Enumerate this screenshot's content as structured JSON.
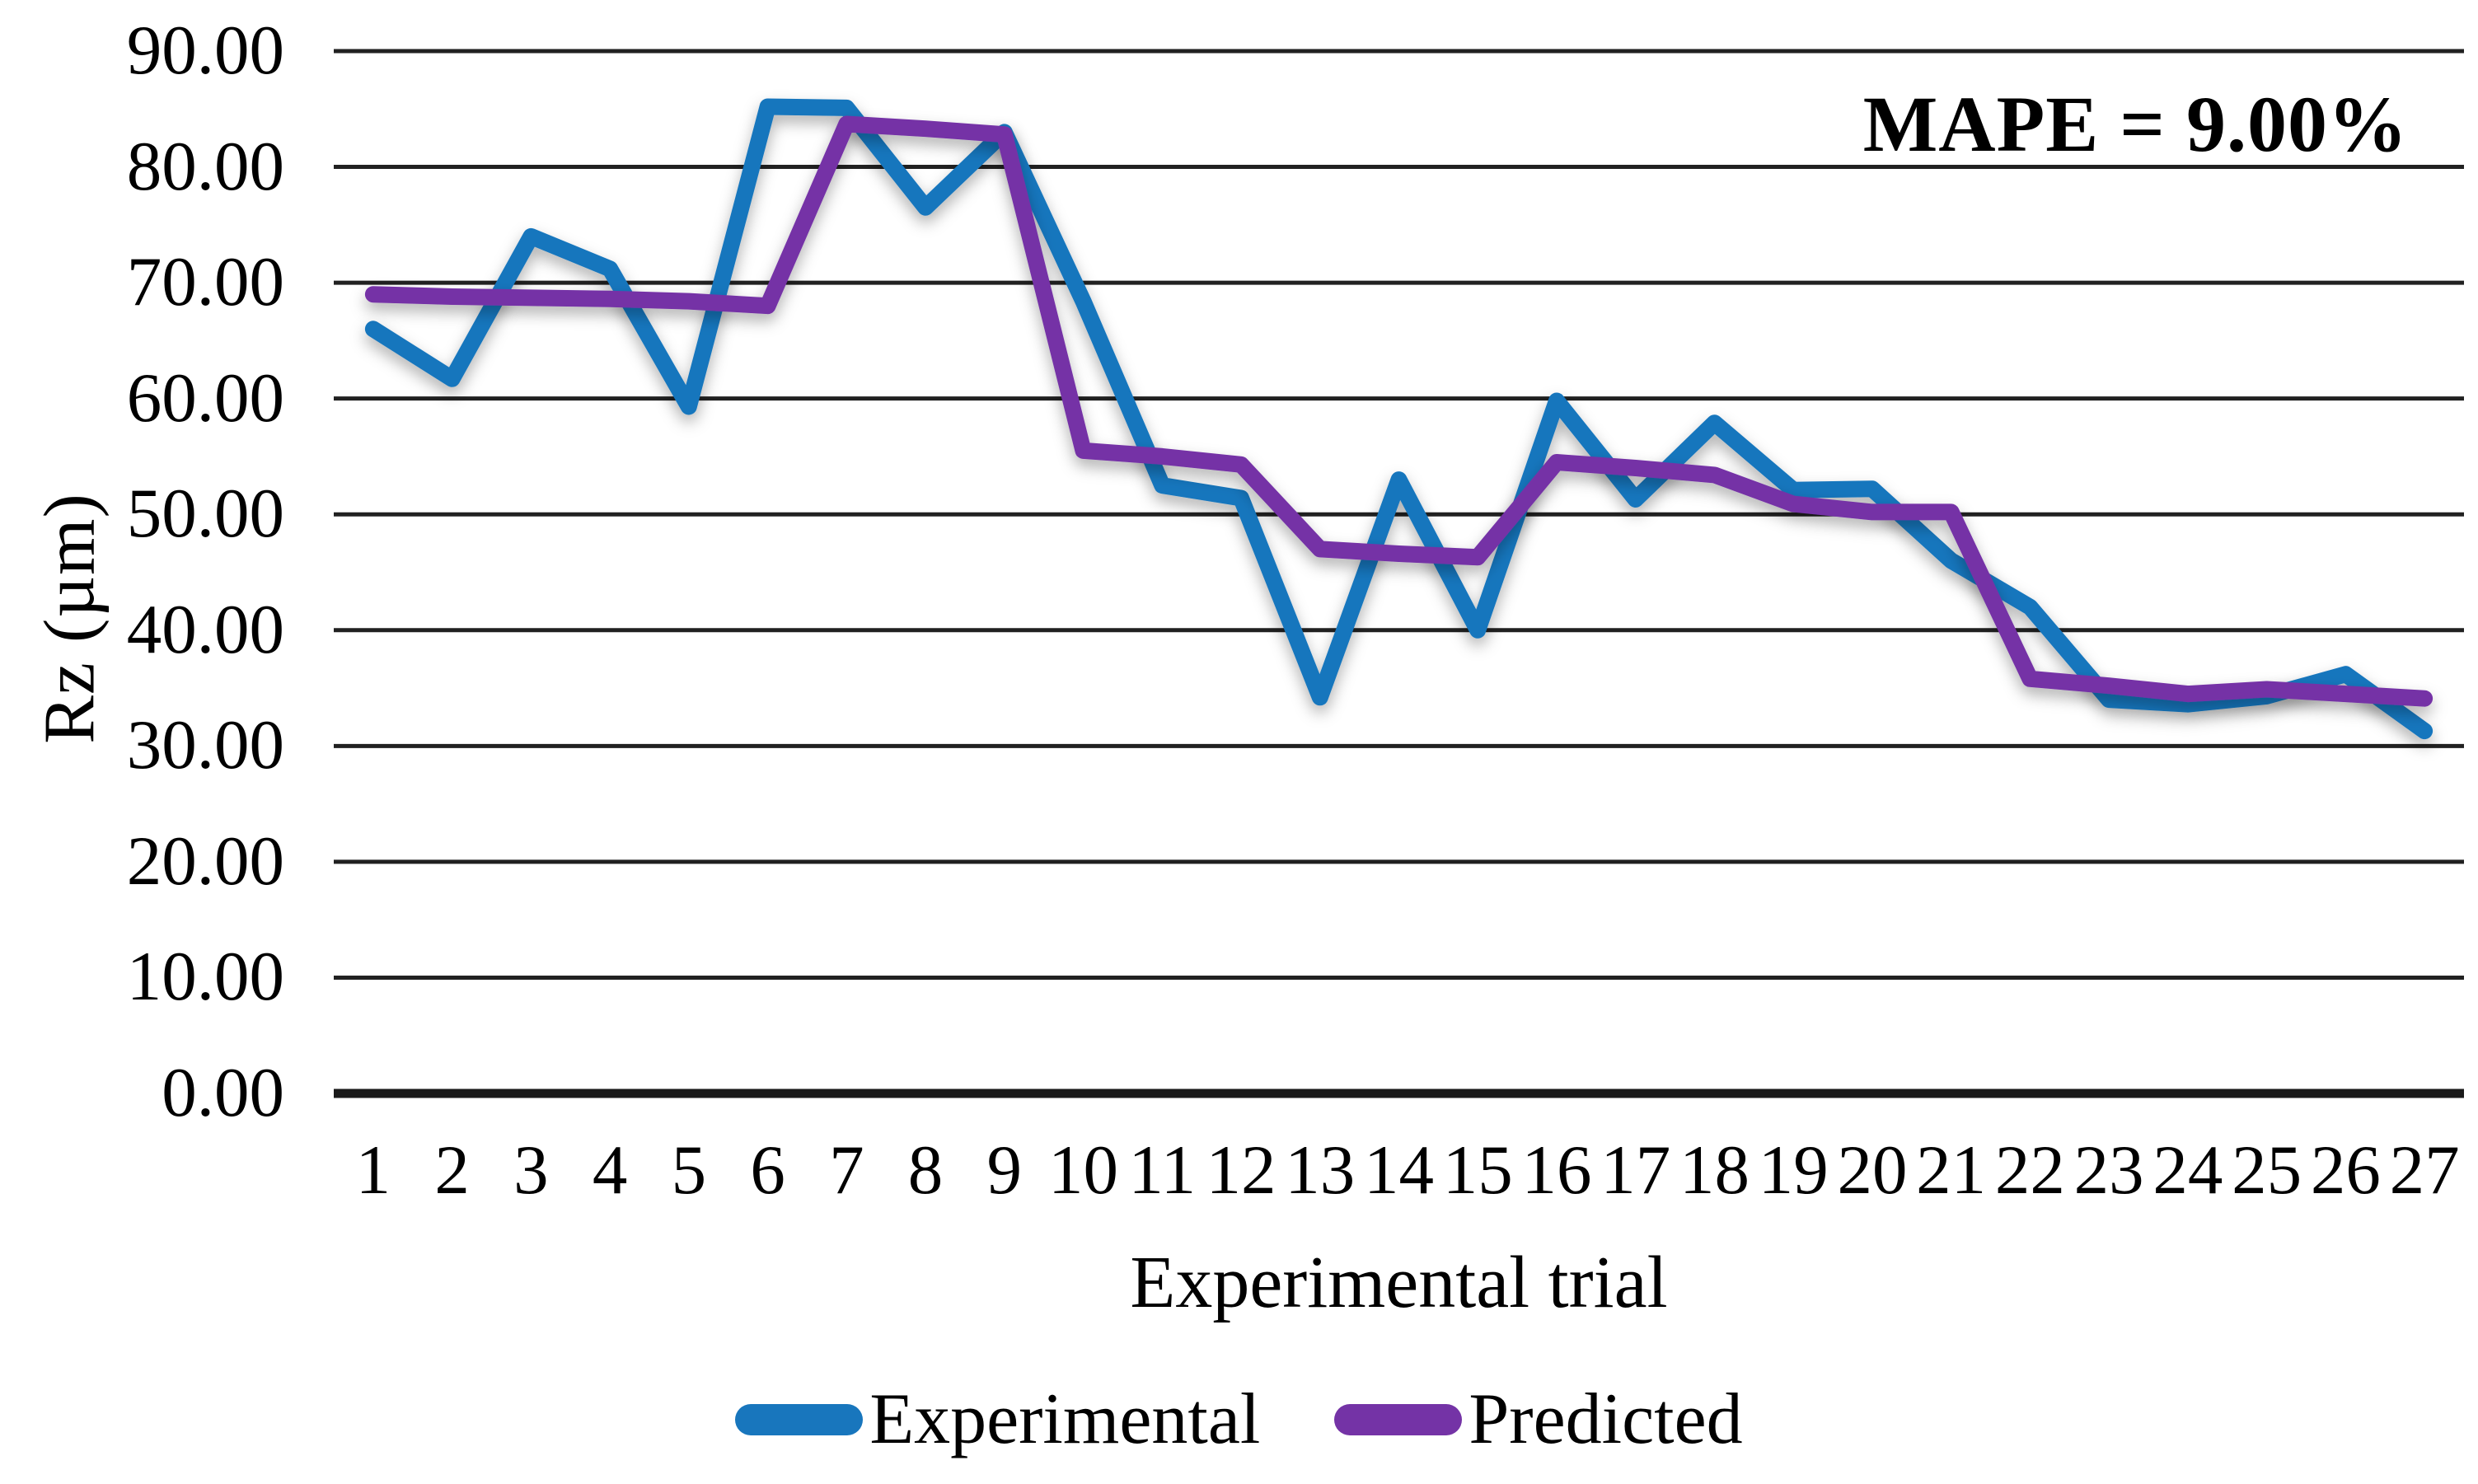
{
  "chart_data": {
    "type": "line",
    "title": "",
    "xlabel": "Experimental trial",
    "ylabel": "Rz (µm)",
    "annotation": "MAPE = 9.00%",
    "categories": [
      "1",
      "2",
      "3",
      "4",
      "5",
      "6",
      "7",
      "8",
      "9",
      "10",
      "11",
      "12",
      "13",
      "14",
      "15",
      "16",
      "17",
      "18",
      "19",
      "20",
      "21",
      "22",
      "23",
      "24",
      "25",
      "26",
      "27"
    ],
    "y_tick_labels": [
      "90.00",
      "80.00",
      "70.00",
      "60.00",
      "50.00",
      "40.00",
      "30.00",
      "20.00",
      "10.00",
      "0.00"
    ],
    "ylim": [
      0,
      90
    ],
    "y_step": 10,
    "grid": "horizontal",
    "legend_position": "bottom",
    "axis_color": "#1a1a1a",
    "gridline_color": "#212121",
    "series": [
      {
        "name": "Experimental",
        "color": "#1876BD",
        "values": [
          66.0,
          61.7,
          74.0,
          71.2,
          59.3,
          85.2,
          85.1,
          76.5,
          83.0,
          68.4,
          52.5,
          51.4,
          34.2,
          53.0,
          40.0,
          59.8,
          51.3,
          57.9,
          52.1,
          52.2,
          46.0,
          42.0,
          34.0,
          33.6,
          34.3,
          36.2,
          31.3
        ]
      },
      {
        "name": "Predicted",
        "color": "#7433A6",
        "values": [
          69.0,
          68.8,
          68.7,
          68.6,
          68.4,
          68.0,
          83.7,
          83.3,
          82.8,
          55.5,
          55.0,
          54.3,
          47.0,
          46.6,
          46.3,
          54.5,
          54.0,
          53.4,
          50.9,
          50.2,
          50.2,
          35.8,
          35.2,
          34.5,
          34.9,
          34.5,
          34.1
        ]
      }
    ]
  }
}
